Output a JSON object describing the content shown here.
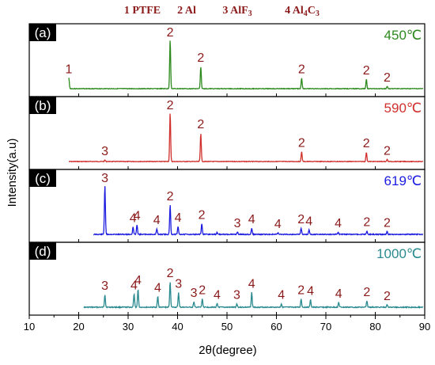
{
  "legend": [
    {
      "text": "1 PTFE"
    },
    {
      "text": "2 Al"
    },
    {
      "text": "3 AlF",
      "sub": "3"
    },
    {
      "text": "4 Al",
      "sub": "4",
      "tail": "C",
      "sub2": "3"
    }
  ],
  "chart_data": {
    "type": "line",
    "xlabel": "2θ(degree)",
    "ylabel": "Intensity(a.u)",
    "xlim": [
      10,
      90
    ],
    "xticks": [
      "10",
      "20",
      "30",
      "40",
      "50",
      "60",
      "70",
      "80",
      "90"
    ],
    "series": [
      {
        "panel": "(a)",
        "temperature": "450℃",
        "color": "#2d8a1e",
        "temp_color": "#2d8a1e",
        "start": 18,
        "noise": 0.8,
        "peaks": [
          {
            "x": 18.0,
            "h": 0.22,
            "label": "1"
          },
          {
            "x": 38.5,
            "h": 1.0,
            "label": "2"
          },
          {
            "x": 44.7,
            "h": 0.45,
            "label": "2"
          },
          {
            "x": 65.1,
            "h": 0.22,
            "label": "2"
          },
          {
            "x": 78.2,
            "h": 0.19,
            "label": "2"
          },
          {
            "x": 82.4,
            "h": 0.05,
            "label": "2"
          }
        ]
      },
      {
        "panel": "(b)",
        "temperature": "590℃",
        "color": "#d0302c",
        "temp_color": "#d0302c",
        "start": 18,
        "noise": 0.8,
        "peaks": [
          {
            "x": 25.3,
            "h": 0.03,
            "label": "3"
          },
          {
            "x": 38.5,
            "h": 1.0,
            "label": "2"
          },
          {
            "x": 44.7,
            "h": 0.58,
            "label": "2"
          },
          {
            "x": 65.1,
            "h": 0.2,
            "label": "2"
          },
          {
            "x": 78.2,
            "h": 0.19,
            "label": "2"
          },
          {
            "x": 82.4,
            "h": 0.04,
            "label": "2"
          }
        ]
      },
      {
        "panel": "(c)",
        "temperature": "619℃",
        "color": "#1c1ce0",
        "temp_color": "#1c1ce0",
        "start": 23,
        "noise": 1.2,
        "peaks": [
          {
            "x": 25.3,
            "h": 1.0,
            "label": "3"
          },
          {
            "x": 31.0,
            "h": 0.15,
            "label": "4"
          },
          {
            "x": 31.8,
            "h": 0.2,
            "label": "4"
          },
          {
            "x": 35.8,
            "h": 0.11,
            "label": "4"
          },
          {
            "x": 38.5,
            "h": 0.6,
            "label": "2"
          },
          {
            "x": 40.1,
            "h": 0.16,
            "label": "4"
          },
          {
            "x": 44.9,
            "h": 0.22,
            "label": "2"
          },
          {
            "x": 48.0,
            "h": 0.04,
            "label": ""
          },
          {
            "x": 52.1,
            "h": 0.05,
            "label": "3"
          },
          {
            "x": 55.0,
            "h": 0.13,
            "label": "4"
          },
          {
            "x": 60.3,
            "h": 0.03,
            "label": "4"
          },
          {
            "x": 65.0,
            "h": 0.13,
            "label": "2"
          },
          {
            "x": 66.6,
            "h": 0.09,
            "label": "4"
          },
          {
            "x": 72.5,
            "h": 0.05,
            "label": "4"
          },
          {
            "x": 78.3,
            "h": 0.07,
            "label": "2"
          },
          {
            "x": 82.4,
            "h": 0.06,
            "label": "2"
          }
        ]
      },
      {
        "panel": "(d)",
        "temperature": "1000℃",
        "color": "#2a8a8f",
        "temp_color": "#2a8a8f",
        "start": 21,
        "noise": 1.2,
        "peaks": [
          {
            "x": 25.3,
            "h": 0.26,
            "label": "3"
          },
          {
            "x": 31.2,
            "h": 0.27,
            "label": "4"
          },
          {
            "x": 32.0,
            "h": 0.37,
            "label": "4"
          },
          {
            "x": 36.0,
            "h": 0.22,
            "label": "4"
          },
          {
            "x": 38.5,
            "h": 0.52,
            "label": "2"
          },
          {
            "x": 40.2,
            "h": 0.3,
            "label": "3"
          },
          {
            "x": 43.3,
            "h": 0.11,
            "label": "3"
          },
          {
            "x": 45.0,
            "h": 0.17,
            "label": "2"
          },
          {
            "x": 48.0,
            "h": 0.07,
            "label": "4"
          },
          {
            "x": 52.0,
            "h": 0.07,
            "label": "3"
          },
          {
            "x": 55.0,
            "h": 0.3,
            "label": "4"
          },
          {
            "x": 61.0,
            "h": 0.07,
            "label": "4"
          },
          {
            "x": 65.0,
            "h": 0.17,
            "label": "2"
          },
          {
            "x": 66.9,
            "h": 0.15,
            "label": "4"
          },
          {
            "x": 72.6,
            "h": 0.1,
            "label": "4"
          },
          {
            "x": 78.3,
            "h": 0.13,
            "label": "2"
          },
          {
            "x": 82.4,
            "h": 0.05,
            "label": "2"
          }
        ]
      }
    ]
  }
}
